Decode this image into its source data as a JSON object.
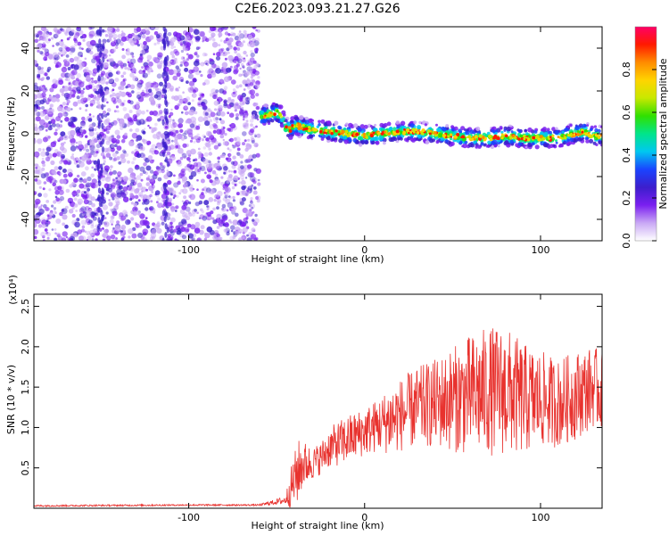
{
  "title": "C2E6.2023.093.21.27.G26",
  "colors": {
    "snr_line": "#e8322e",
    "spectrogram_scatter": "#7b2ff7",
    "background": "#ffffff",
    "axis": "#000000"
  },
  "chart_data": [
    {
      "id": "spectrogram",
      "type": "heatmap",
      "xlabel": "Height of straight line (km)",
      "ylabel": "Frequency (Hz)",
      "xlim": [
        -188,
        135
      ],
      "ylim": [
        -50,
        50
      ],
      "x_ticks": [
        -100,
        0,
        100
      ],
      "y_ticks": [
        -40,
        -20,
        0,
        20,
        40
      ],
      "grid": false,
      "colorbar": {
        "label": "Normalized spectral amplitude",
        "range": [
          0.0,
          1.0
        ],
        "ticks": [
          "0.0",
          "0.2",
          "0.4",
          "0.6",
          "0.8"
        ],
        "colormap": [
          "#ffffff",
          "#c9a8f5",
          "#7a1ff0",
          "#3c1ecc",
          "#1a44ff",
          "#00c8f0",
          "#00e58a",
          "#30e000",
          "#c8e800",
          "#ffd400",
          "#ff8c00",
          "#ff1a00",
          "#ff0066"
        ]
      },
      "noise_region_x": [
        -188,
        -60
      ],
      "signal_track": {
        "x": [
          -60,
          -55,
          -50,
          -47,
          -45,
          -42,
          -40,
          -35,
          -30,
          -20,
          -10,
          0,
          10,
          20,
          30,
          40,
          50,
          60,
          70,
          80,
          90,
          100,
          110,
          118,
          125,
          130,
          135
        ],
        "frequency": [
          8,
          9,
          10,
          8,
          3,
          2,
          4,
          3,
          2,
          1,
          0,
          -1,
          0,
          1,
          1,
          0,
          -1,
          -2,
          -2,
          -1,
          -2,
          -2,
          -2,
          0,
          1,
          -1,
          -1
        ]
      }
    },
    {
      "id": "snr",
      "type": "line",
      "xlabel": "Height of straight line (km)",
      "ylabel": "SNR (10 * v/v)",
      "y_multiplier": "(x10⁴)",
      "xlim": [
        -188,
        135
      ],
      "ylim": [
        0.0,
        2.65
      ],
      "x_ticks": [
        -100,
        0,
        100
      ],
      "y_ticks": [
        "0.5",
        "1.0",
        "1.5",
        "2.0",
        "2.5"
      ],
      "grid": false,
      "series": [
        {
          "envelope_x": [
            -188,
            -100,
            -60,
            -45,
            -42,
            -38,
            -35,
            -30,
            -25,
            -20,
            -10,
            0,
            10,
            15,
            20,
            30,
            40,
            50,
            60,
            70,
            80,
            90,
            100,
            110,
            120,
            130,
            135
          ],
          "envelope_center": [
            0.03,
            0.04,
            0.04,
            0.1,
            0.25,
            0.45,
            0.55,
            0.55,
            0.62,
            0.75,
            0.85,
            0.95,
            1.05,
            1.1,
            1.15,
            1.25,
            1.3,
            1.35,
            1.4,
            1.45,
            1.45,
            1.35,
            1.35,
            1.3,
            1.4,
            1.5,
            1.45
          ],
          "envelope_amplitude": [
            0.01,
            0.01,
            0.01,
            0.05,
            0.25,
            0.4,
            0.3,
            0.2,
            0.2,
            0.25,
            0.3,
            0.3,
            0.35,
            0.45,
            0.45,
            0.5,
            0.55,
            0.65,
            0.75,
            0.8,
            0.8,
            0.7,
            0.6,
            0.55,
            0.55,
            0.5,
            0.5
          ]
        }
      ]
    }
  ]
}
